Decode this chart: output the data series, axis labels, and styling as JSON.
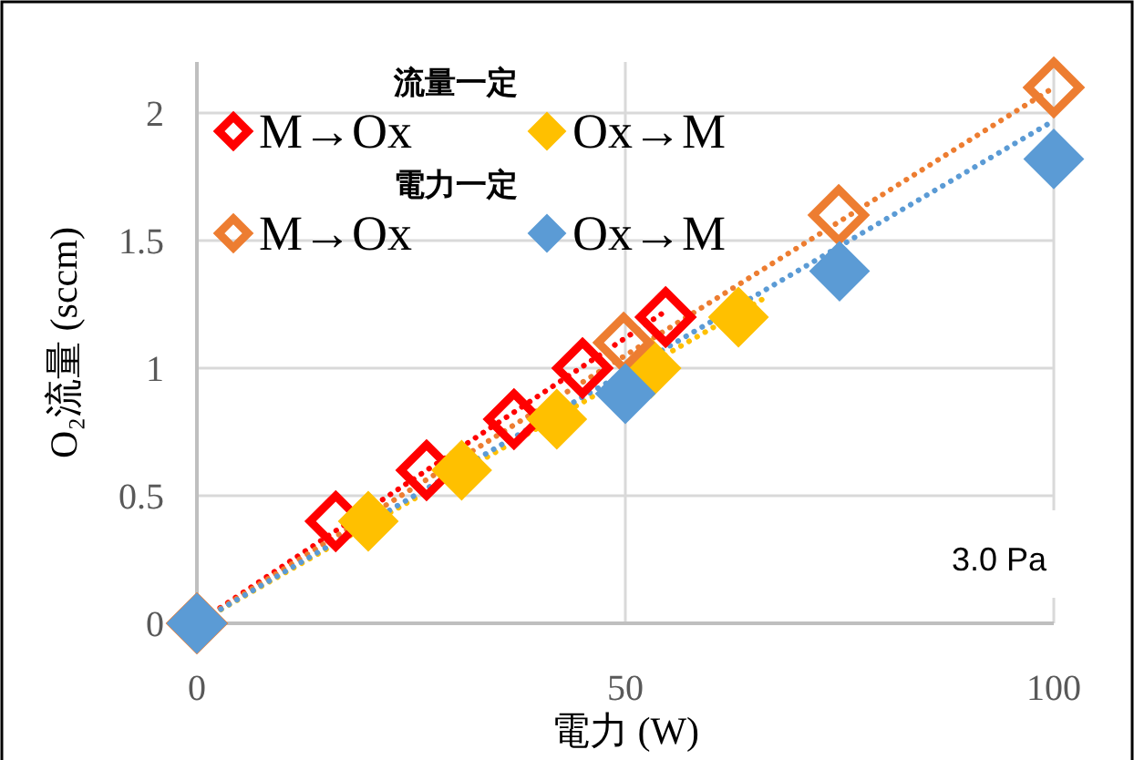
{
  "chart_data": {
    "type": "scatter",
    "xlabel": "電力 (W)",
    "ylabel": "O₂流量 (sccm)",
    "xlim": [
      0,
      100
    ],
    "xticks": [
      0,
      50,
      100
    ],
    "ylim": [
      0,
      2.2
    ],
    "yticks": [
      0,
      0.5,
      1,
      1.5,
      2
    ],
    "grid": true,
    "legend": "top left",
    "annotations": [
      "流量一定",
      "電力一定",
      "3.0 Pa"
    ],
    "series": [
      {
        "name": "M→Ox",
        "color": "#ff0000",
        "marker": "diamond",
        "x": [
          16.2,
          26.8,
          37,
          45,
          54.7
        ],
        "values": [
          0.4,
          0.6,
          0.8,
          1.0,
          1.2
        ]
      },
      {
        "name": "Ox→M",
        "color": "#ffc000",
        "marker": "diamond",
        "x": [
          20,
          30.9,
          42,
          53,
          63.2
        ],
        "values": [
          0.4,
          0.6,
          0.8,
          1.0,
          1.2
        ]
      },
      {
        "name": "M→Ox",
        "color": "#ed7d31",
        "marker": "diamond",
        "x": [
          0,
          49.8,
          74.9,
          100
        ],
        "values": [
          0,
          1.1,
          1.6,
          2.1
        ]
      },
      {
        "name": "Ox→M",
        "color": "#5b9bd5",
        "marker": "diamond",
        "x": [
          0,
          50,
          75,
          100
        ],
        "values": [
          0,
          0.9,
          1.38,
          1.82
        ]
      },
      {
        "type": "line",
        "line_style": "dotted",
        "color": "#ff0000",
        "x": [
          0,
          55
        ],
        "values": [
          0,
          1.23
        ]
      },
      {
        "type": "line",
        "line_style": "dotted",
        "color": "#ffc000",
        "x": [
          0,
          66
        ],
        "values": [
          0,
          1.27
        ]
      },
      {
        "type": "line",
        "line_style": "dotted",
        "color": "#ed7d31",
        "x": [
          0,
          100
        ],
        "values": [
          0,
          2.1
        ]
      },
      {
        "type": "line",
        "line_style": "dotted",
        "color": "#5b9bd5",
        "x": [
          0,
          100
        ],
        "values": [
          0,
          1.97
        ]
      }
    ]
  }
}
